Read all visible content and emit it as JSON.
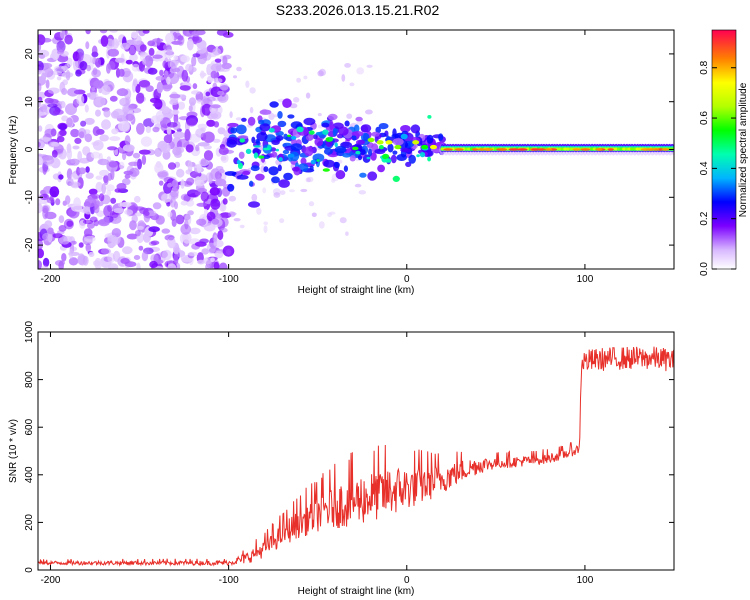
{
  "title": "S233.2026.013.15.21.R02",
  "chart_data": [
    {
      "type": "heatmap",
      "title": "S233.2026.013.15.21.R02",
      "xlabel": "Height of straight line (km)",
      "ylabel": "Frequency (Hz)",
      "xlim": [
        -207,
        150
      ],
      "ylim": [
        -25,
        25
      ],
      "xticks": [
        -200,
        -100,
        0,
        100
      ],
      "yticks": [
        -20,
        -10,
        0,
        10,
        20
      ],
      "colorbar": {
        "label": "Normalized spectral amplitude",
        "range": [
          0.0,
          0.95
        ],
        "ticks": [
          "0.0",
          "0.2",
          "0.4",
          "0.6",
          "0.8"
        ]
      },
      "features": [
        {
          "name": "scattered noise",
          "x_range": [
            -207,
            -100
          ],
          "freq_range": [
            -25,
            25
          ],
          "amplitude": "low (0.0-0.2)"
        },
        {
          "name": "transition cluster",
          "x_range": [
            -100,
            20
          ],
          "freq_range": [
            -10,
            15
          ],
          "amplitude": "0.1-0.6"
        },
        {
          "name": "carrier line",
          "x_range": [
            20,
            150
          ],
          "freq": 0,
          "amplitude": "up to 0.95"
        }
      ]
    },
    {
      "type": "line",
      "title": "",
      "xlabel": "Height of straight line (km)",
      "ylabel": "SNR (10 * v/v)",
      "xlim": [
        -207,
        150
      ],
      "ylim": [
        0,
        1000
      ],
      "xticks": [
        -200,
        -100,
        0,
        100
      ],
      "yticks": [
        0,
        200,
        400,
        600,
        800,
        1000
      ],
      "color": "#e8302a",
      "series": [
        {
          "name": "SNR",
          "points": [
            [
              -207,
              30
            ],
            [
              -180,
              30
            ],
            [
              -150,
              30
            ],
            [
              -120,
              30
            ],
            [
              -100,
              30
            ],
            [
              -90,
              50
            ],
            [
              -80,
              90
            ],
            [
              -70,
              150
            ],
            [
              -60,
              200
            ],
            [
              -50,
              240
            ],
            [
              -40,
              270
            ],
            [
              -30,
              290
            ],
            [
              -20,
              310
            ],
            [
              -10,
              330
            ],
            [
              0,
              345
            ],
            [
              10,
              360
            ],
            [
              20,
              385
            ],
            [
              30,
              415
            ],
            [
              40,
              440
            ],
            [
              50,
              450
            ],
            [
              60,
              455
            ],
            [
              70,
              460
            ],
            [
              80,
              470
            ],
            [
              90,
              490
            ],
            [
              97,
              510
            ],
            [
              98,
              900
            ],
            [
              110,
              910
            ],
            [
              120,
              915
            ],
            [
              130,
              915
            ],
            [
              140,
              915
            ],
            [
              150,
              905
            ]
          ],
          "noise": [
            [
              -207,
              8
            ],
            [
              -100,
              10
            ],
            [
              -90,
              25
            ],
            [
              -70,
              50
            ],
            [
              -50,
              80
            ],
            [
              -30,
              110
            ],
            [
              -10,
              110
            ],
            [
              10,
              80
            ],
            [
              30,
              50
            ],
            [
              50,
              25
            ],
            [
              97,
              20
            ],
            [
              98,
              45
            ],
            [
              150,
              45
            ]
          ]
        }
      ]
    }
  ]
}
